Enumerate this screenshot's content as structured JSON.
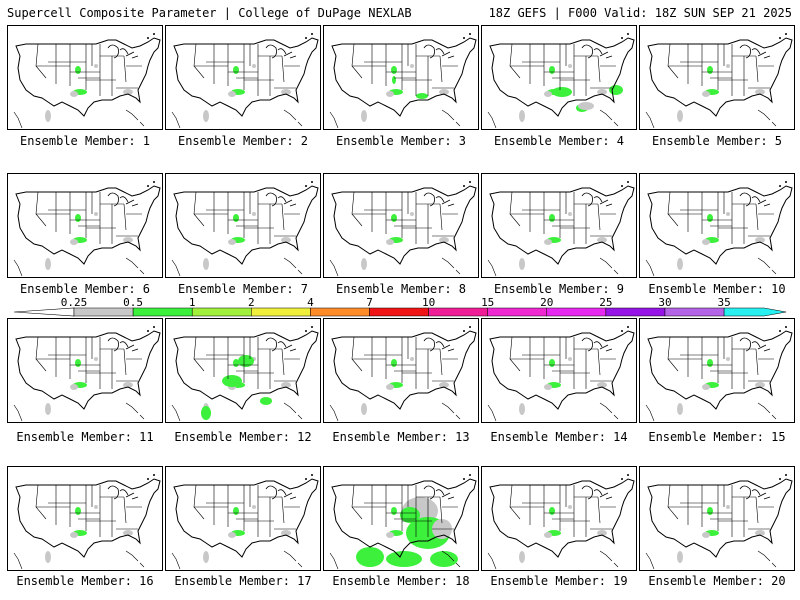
{
  "header": {
    "left_title": "Supercell Composite Parameter | College of DuPage NEXLAB",
    "right_title": "18Z GEFS | F000 Valid: 18Z SUN SEP 21 2025"
  },
  "members": [
    {
      "label": "Ensemble Member: 1"
    },
    {
      "label": "Ensemble Member: 2"
    },
    {
      "label": "Ensemble Member: 3"
    },
    {
      "label": "Ensemble Member: 4"
    },
    {
      "label": "Ensemble Member: 5"
    },
    {
      "label": "Ensemble Member: 6"
    },
    {
      "label": "Ensemble Member: 7"
    },
    {
      "label": "Ensemble Member: 8"
    },
    {
      "label": "Ensemble Member: 9"
    },
    {
      "label": "Ensemble Member: 10"
    },
    {
      "label": "Ensemble Member: 11"
    },
    {
      "label": "Ensemble Member: 12"
    },
    {
      "label": "Ensemble Member: 13"
    },
    {
      "label": "Ensemble Member: 14"
    },
    {
      "label": "Ensemble Member: 15"
    },
    {
      "label": "Ensemble Member: 16"
    },
    {
      "label": "Ensemble Member: 17"
    },
    {
      "label": "Ensemble Member: 18"
    },
    {
      "label": "Ensemble Member: 19"
    },
    {
      "label": "Ensemble Member: 20"
    }
  ],
  "colorbar": {
    "ticks": [
      "0.25",
      "0.5",
      "1",
      "2",
      "4",
      "7",
      "10",
      "15",
      "20",
      "25",
      "30",
      "35"
    ],
    "colors": [
      "#c8c8c8",
      "#3cf03c",
      "#a0f03c",
      "#f0f03c",
      "#ff8c28",
      "#f01414",
      "#f01e96",
      "#f028d2",
      "#e628f0",
      "#9614e6",
      "#b464e6",
      "#28f0f0"
    ]
  },
  "colors": {
    "background": "#ffffff",
    "map_lines": "#000000",
    "low_values": "#c8c8c8",
    "moderate_values": "#3cf03c"
  }
}
